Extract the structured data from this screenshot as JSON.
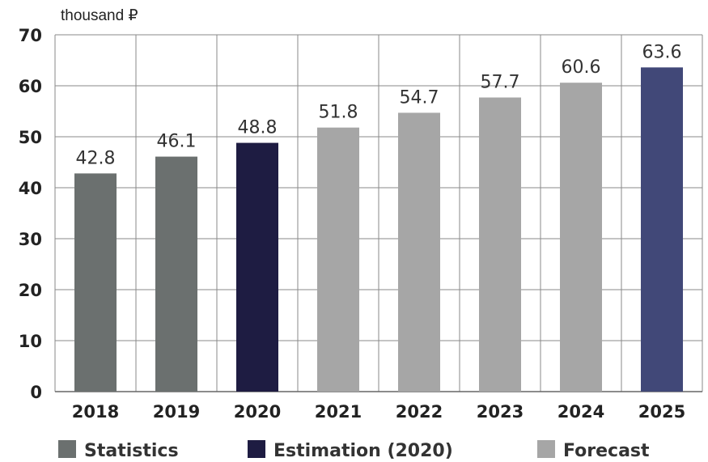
{
  "chart_data": {
    "type": "bar",
    "unit_label": "thousand ₽",
    "categories": [
      "2018",
      "2019",
      "2020",
      "2021",
      "2022",
      "2023",
      "2024",
      "2025"
    ],
    "values": [
      42.8,
      46.1,
      48.8,
      51.8,
      54.7,
      57.7,
      60.6,
      63.6
    ],
    "data_labels": [
      "42.8",
      "46.1",
      "48.8",
      "51.8",
      "54.7",
      "57.7",
      "60.6",
      "63.6"
    ],
    "bar_groups": [
      "statistics",
      "statistics",
      "estimation",
      "forecast",
      "forecast",
      "forecast",
      "forecast",
      "highlight"
    ],
    "ylim": [
      0,
      70
    ],
    "yticks": [
      "0",
      "10",
      "20",
      "30",
      "40",
      "50",
      "60",
      "70"
    ],
    "grid": true,
    "legend_position": "bottom",
    "legend": [
      {
        "label": "Statistics",
        "color": "#6b706f"
      },
      {
        "label": "Estimation (2020)",
        "color": "#1e1c42"
      },
      {
        "label": "Forecast",
        "color": "#a6a6a6"
      }
    ],
    "colors": {
      "statistics": "#6b706f",
      "estimation": "#1e1c42",
      "forecast": "#a6a6a6",
      "highlight": "#414878"
    }
  }
}
